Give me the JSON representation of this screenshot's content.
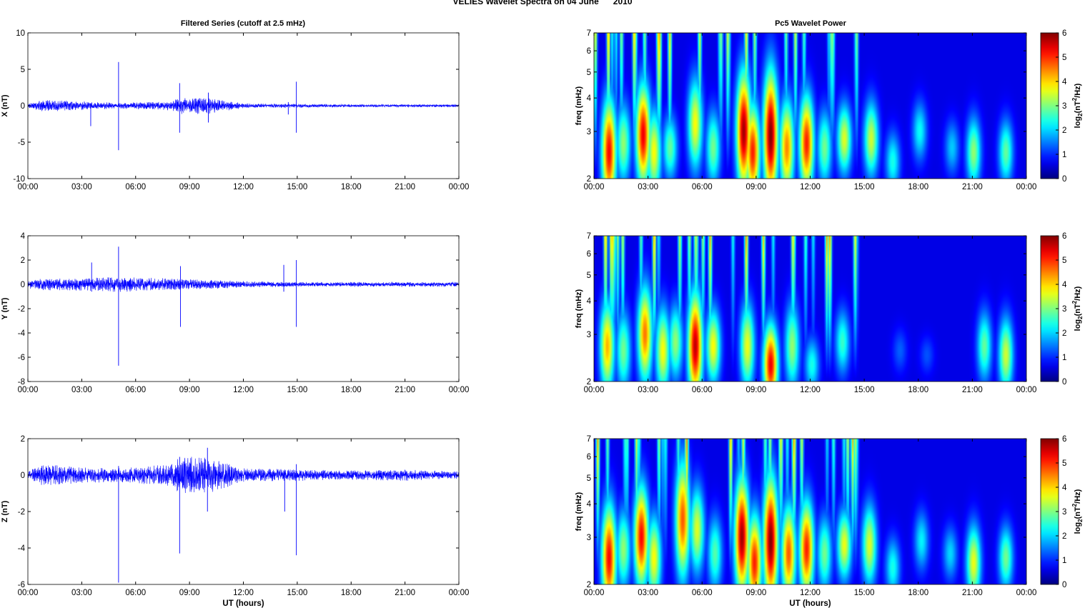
{
  "figure": {
    "title": "VELIES Wavelet Spectra on 04 June      2010",
    "left_column_title": "Filtered Series (cutoff at 2.5 mHz)",
    "right_column_title": "Pc5 Wavelet Power",
    "xlabel": "UT (hours)"
  },
  "chart_data": [
    {
      "type": "line",
      "name": "x-filtered-series",
      "ylabel": "X (nT)",
      "x_range_hours": [
        0,
        24
      ],
      "xticks": [
        "00:00",
        "03:00",
        "06:00",
        "09:00",
        "12:00",
        "15:00",
        "18:00",
        "21:00",
        "00:00"
      ],
      "ylim": [
        -10,
        10
      ],
      "yticks": [
        -10,
        -5,
        0,
        5,
        10
      ],
      "line_color": "#0000ff",
      "envelope": [
        {
          "t": 0.0,
          "a": 0.2
        },
        {
          "t": 0.8,
          "a": 0.6
        },
        {
          "t": 1.5,
          "a": 0.6
        },
        {
          "t": 3.0,
          "a": 0.5
        },
        {
          "t": 5.0,
          "a": 0.3
        },
        {
          "t": 8.0,
          "a": 0.5
        },
        {
          "t": 8.5,
          "a": 0.9
        },
        {
          "t": 10.0,
          "a": 0.9
        },
        {
          "t": 12.0,
          "a": 0.25
        },
        {
          "t": 15.0,
          "a": 0.2
        },
        {
          "t": 18.0,
          "a": 0.15
        },
        {
          "t": 24.0,
          "a": 0.15
        }
      ],
      "spikes": [
        {
          "t": 3.5,
          "top": 0.3,
          "bottom": -2.8
        },
        {
          "t": 5.05,
          "top": 6.0,
          "bottom": -6.1
        },
        {
          "t": 8.45,
          "top": 3.1,
          "bottom": -3.7
        },
        {
          "t": 10.05,
          "top": 1.8,
          "bottom": -2.3
        },
        {
          "t": 14.5,
          "top": 0.5,
          "bottom": -1.2
        },
        {
          "t": 14.95,
          "top": 3.3,
          "bottom": -3.7
        }
      ]
    },
    {
      "type": "line",
      "name": "y-filtered-series",
      "ylabel": "Y (nT)",
      "x_range_hours": [
        0,
        24
      ],
      "xticks": [
        "00:00",
        "03:00",
        "06:00",
        "09:00",
        "12:00",
        "15:00",
        "18:00",
        "21:00",
        "00:00"
      ],
      "ylim": [
        -8,
        4
      ],
      "yticks": [
        -8,
        -6,
        -4,
        -2,
        0,
        2,
        4
      ],
      "line_color": "#0000ff",
      "envelope": [
        {
          "t": 0.0,
          "a": 0.3
        },
        {
          "t": 1.0,
          "a": 0.4
        },
        {
          "t": 3.0,
          "a": 0.4
        },
        {
          "t": 5.0,
          "a": 0.5
        },
        {
          "t": 8.5,
          "a": 0.35
        },
        {
          "t": 10.0,
          "a": 0.3
        },
        {
          "t": 12.0,
          "a": 0.2
        },
        {
          "t": 15.0,
          "a": 0.15
        },
        {
          "t": 18.0,
          "a": 0.15
        },
        {
          "t": 24.0,
          "a": 0.15
        }
      ],
      "spikes": [
        {
          "t": 3.55,
          "top": 1.8,
          "bottom": -0.6
        },
        {
          "t": 5.05,
          "top": 3.1,
          "bottom": -6.7
        },
        {
          "t": 8.5,
          "top": 1.5,
          "bottom": -3.5
        },
        {
          "t": 14.25,
          "top": 1.6,
          "bottom": -0.6
        },
        {
          "t": 14.95,
          "top": 2.0,
          "bottom": -3.5
        }
      ]
    },
    {
      "type": "line",
      "name": "z-filtered-series",
      "ylabel": "Z (nT)",
      "xlabel": "UT (hours)",
      "x_range_hours": [
        0,
        24
      ],
      "xticks": [
        "00:00",
        "03:00",
        "06:00",
        "09:00",
        "12:00",
        "15:00",
        "18:00",
        "21:00",
        "00:00"
      ],
      "ylim": [
        -6,
        2
      ],
      "yticks": [
        -6,
        -4,
        -2,
        0,
        2
      ],
      "line_color": "#0000ff",
      "envelope": [
        {
          "t": 0.0,
          "a": 0.15
        },
        {
          "t": 0.8,
          "a": 0.5
        },
        {
          "t": 2.0,
          "a": 0.4
        },
        {
          "t": 3.0,
          "a": 0.35
        },
        {
          "t": 5.0,
          "a": 0.3
        },
        {
          "t": 8.0,
          "a": 0.5
        },
        {
          "t": 8.5,
          "a": 0.8
        },
        {
          "t": 10.0,
          "a": 0.8
        },
        {
          "t": 12.0,
          "a": 0.3
        },
        {
          "t": 15.0,
          "a": 0.25
        },
        {
          "t": 18.0,
          "a": 0.2
        },
        {
          "t": 21.0,
          "a": 0.25
        },
        {
          "t": 24.0,
          "a": 0.15
        }
      ],
      "spikes": [
        {
          "t": 5.05,
          "top": 0.5,
          "bottom": -5.9
        },
        {
          "t": 8.45,
          "top": 1.0,
          "bottom": -4.3
        },
        {
          "t": 10.0,
          "top": 1.5,
          "bottom": -2.0
        },
        {
          "t": 14.3,
          "top": 0.3,
          "bottom": -2.0
        },
        {
          "t": 14.95,
          "top": 0.6,
          "bottom": -4.4
        }
      ]
    },
    {
      "type": "heatmap",
      "name": "x-wavelet-power",
      "ylabel": "freq (mHz)",
      "colorbar_label": "log2(nT2/Hz)",
      "x_range_hours": [
        0,
        24
      ],
      "xticks": [
        "00:00",
        "03:00",
        "06:00",
        "09:00",
        "12:00",
        "15:00",
        "18:00",
        "21:00",
        "00:00"
      ],
      "y_scale": "log",
      "ylim": [
        2,
        7
      ],
      "yticks": [
        2,
        3,
        4,
        5,
        6,
        7
      ],
      "clim": [
        0,
        6
      ],
      "cticks": [
        0,
        1,
        2,
        3,
        4,
        5,
        6
      ],
      "colormap": "jet",
      "blobs": [
        {
          "t": 0.8,
          "f": 2.5,
          "p": 5.2,
          "fw": 2.0
        },
        {
          "t": 1.6,
          "f": 2.7,
          "p": 2.8,
          "fw": 1.5
        },
        {
          "t": 2.7,
          "f": 2.9,
          "p": 5.3,
          "fw": 1.9
        },
        {
          "t": 3.3,
          "f": 2.5,
          "p": 3.5,
          "fw": 1.6
        },
        {
          "t": 4.2,
          "f": 2.6,
          "p": 2.5,
          "fw": 1.2
        },
        {
          "t": 5.6,
          "f": 3.2,
          "p": 3.5,
          "fw": 1.7
        },
        {
          "t": 6.6,
          "f": 2.6,
          "p": 2.6,
          "fw": 1.4
        },
        {
          "t": 8.3,
          "f": 3.0,
          "p": 5.8,
          "fw": 2.2
        },
        {
          "t": 8.8,
          "f": 2.5,
          "p": 5.0,
          "fw": 1.8
        },
        {
          "t": 9.8,
          "f": 2.9,
          "p": 6.0,
          "fw": 2.4
        },
        {
          "t": 10.7,
          "f": 2.6,
          "p": 4.3,
          "fw": 1.8
        },
        {
          "t": 11.8,
          "f": 2.7,
          "p": 5.0,
          "fw": 1.8
        },
        {
          "t": 12.8,
          "f": 2.6,
          "p": 2.6,
          "fw": 1.4
        },
        {
          "t": 13.9,
          "f": 2.8,
          "p": 3.3,
          "fw": 1.3
        },
        {
          "t": 15.4,
          "f": 2.8,
          "p": 3.2,
          "fw": 1.4
        },
        {
          "t": 16.6,
          "f": 2.3,
          "p": 2.0,
          "fw": 1.1
        },
        {
          "t": 18.1,
          "f": 3.0,
          "p": 1.9,
          "fw": 1.1
        },
        {
          "t": 19.9,
          "f": 2.6,
          "p": 1.5,
          "fw": 1.0
        },
        {
          "t": 21.1,
          "f": 2.5,
          "p": 2.8,
          "fw": 1.3
        },
        {
          "t": 22.9,
          "f": 2.5,
          "p": 2.5,
          "fw": 1.2
        }
      ]
    },
    {
      "type": "heatmap",
      "name": "y-wavelet-power",
      "ylabel": "freq (mHz)",
      "colorbar_label": "log2(nT2/Hz)",
      "x_range_hours": [
        0,
        24
      ],
      "xticks": [
        "00:00",
        "03:00",
        "06:00",
        "09:00",
        "12:00",
        "15:00",
        "18:00",
        "21:00",
        "00:00"
      ],
      "y_scale": "log",
      "ylim": [
        2,
        7
      ],
      "yticks": [
        2,
        3,
        4,
        5,
        6,
        7
      ],
      "clim": [
        0,
        6
      ],
      "cticks": [
        0,
        1,
        2,
        3,
        4,
        5,
        6
      ],
      "colormap": "jet",
      "blobs": [
        {
          "t": 0.7,
          "f": 2.7,
          "p": 4.0,
          "fw": 1.7
        },
        {
          "t": 1.6,
          "f": 2.6,
          "p": 2.6,
          "fw": 1.5
        },
        {
          "t": 2.8,
          "f": 3.0,
          "p": 4.4,
          "fw": 1.8
        },
        {
          "t": 3.8,
          "f": 2.6,
          "p": 3.5,
          "fw": 1.6
        },
        {
          "t": 4.5,
          "f": 2.8,
          "p": 2.8,
          "fw": 1.4
        },
        {
          "t": 5.6,
          "f": 2.7,
          "p": 5.6,
          "fw": 2.0
        },
        {
          "t": 6.6,
          "f": 2.7,
          "p": 3.5,
          "fw": 1.4
        },
        {
          "t": 8.5,
          "f": 2.7,
          "p": 3.4,
          "fw": 1.6
        },
        {
          "t": 9.8,
          "f": 2.3,
          "p": 5.3,
          "fw": 1.5
        },
        {
          "t": 11.0,
          "f": 2.7,
          "p": 2.8,
          "fw": 1.6
        },
        {
          "t": 12.1,
          "f": 2.3,
          "p": 2.0,
          "fw": 1.0
        },
        {
          "t": 13.8,
          "f": 2.8,
          "p": 2.2,
          "fw": 1.2
        },
        {
          "t": 17.0,
          "f": 2.6,
          "p": 0.8,
          "fw": 0.8
        },
        {
          "t": 18.5,
          "f": 2.5,
          "p": 0.7,
          "fw": 0.7
        },
        {
          "t": 21.7,
          "f": 2.7,
          "p": 2.5,
          "fw": 1.3
        },
        {
          "t": 22.9,
          "f": 2.5,
          "p": 3.2,
          "fw": 1.4
        }
      ]
    },
    {
      "type": "heatmap",
      "name": "z-wavelet-power",
      "ylabel": "freq (mHz)",
      "xlabel": "UT (hours)",
      "colorbar_label": "log2(nT2/Hz)",
      "x_range_hours": [
        0,
        24
      ],
      "xticks": [
        "00:00",
        "03:00",
        "06:00",
        "09:00",
        "12:00",
        "15:00",
        "18:00",
        "21:00",
        "00:00"
      ],
      "y_scale": "log",
      "ylim": [
        2,
        7
      ],
      "yticks": [
        2,
        3,
        4,
        5,
        6,
        7
      ],
      "clim": [
        0,
        6
      ],
      "cticks": [
        0,
        1,
        2,
        3,
        4,
        5,
        6
      ],
      "colormap": "jet",
      "blobs": [
        {
          "t": 0.8,
          "f": 2.5,
          "p": 5.2,
          "fw": 2.0
        },
        {
          "t": 1.6,
          "f": 2.7,
          "p": 2.8,
          "fw": 1.5
        },
        {
          "t": 2.6,
          "f": 3.0,
          "p": 5.2,
          "fw": 1.9
        },
        {
          "t": 3.3,
          "f": 2.5,
          "p": 3.5,
          "fw": 1.6
        },
        {
          "t": 4.9,
          "f": 3.5,
          "p": 4.6,
          "fw": 2.2
        },
        {
          "t": 5.7,
          "f": 3.2,
          "p": 3.3,
          "fw": 1.6
        },
        {
          "t": 6.7,
          "f": 2.6,
          "p": 2.4,
          "fw": 1.4
        },
        {
          "t": 8.2,
          "f": 3.0,
          "p": 5.8,
          "fw": 2.2
        },
        {
          "t": 8.9,
          "f": 2.4,
          "p": 5.0,
          "fw": 1.8
        },
        {
          "t": 9.8,
          "f": 2.9,
          "p": 6.0,
          "fw": 2.4
        },
        {
          "t": 10.8,
          "f": 2.6,
          "p": 4.6,
          "fw": 1.8
        },
        {
          "t": 11.8,
          "f": 2.7,
          "p": 5.0,
          "fw": 1.8
        },
        {
          "t": 12.8,
          "f": 2.6,
          "p": 2.6,
          "fw": 1.4
        },
        {
          "t": 13.9,
          "f": 2.8,
          "p": 3.4,
          "fw": 1.3
        },
        {
          "t": 15.3,
          "f": 2.8,
          "p": 3.3,
          "fw": 1.5
        },
        {
          "t": 16.6,
          "f": 2.3,
          "p": 2.0,
          "fw": 1.1
        },
        {
          "t": 18.2,
          "f": 2.9,
          "p": 1.8,
          "fw": 1.1
        },
        {
          "t": 19.8,
          "f": 2.6,
          "p": 1.6,
          "fw": 1.0
        },
        {
          "t": 21.1,
          "f": 2.4,
          "p": 3.4,
          "fw": 1.4
        },
        {
          "t": 22.9,
          "f": 2.5,
          "p": 2.6,
          "fw": 1.2
        }
      ]
    }
  ]
}
